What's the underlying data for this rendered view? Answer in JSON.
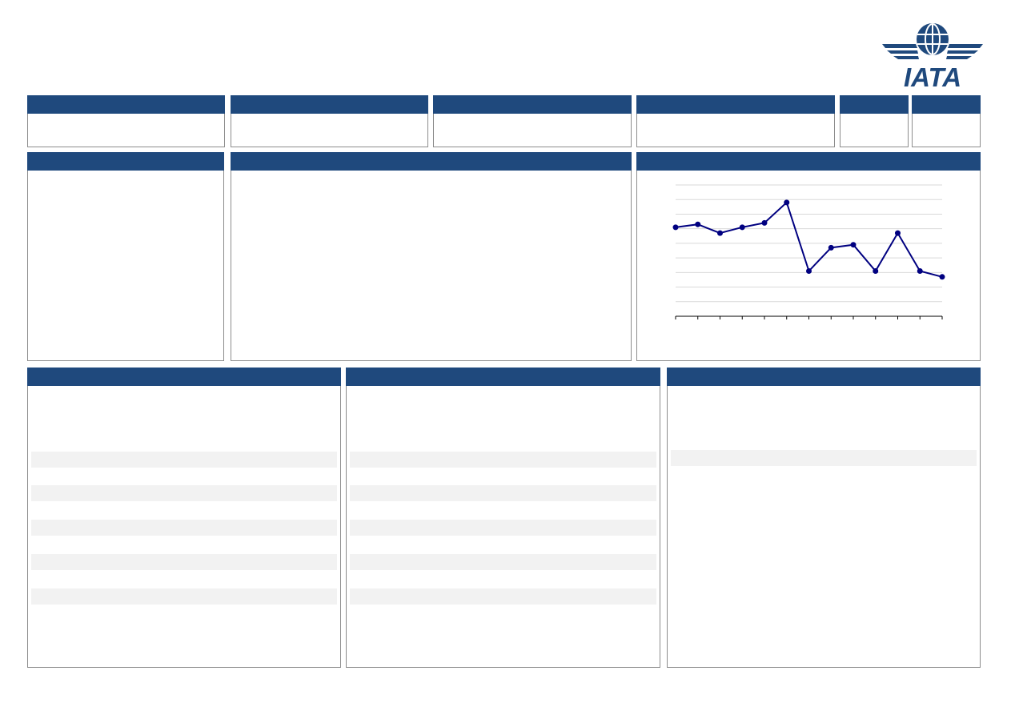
{
  "brand": {
    "logo_text": "IATA",
    "color": "#1f497d"
  },
  "colors": {
    "header_bg": "#1f497d",
    "border": "#8c8c8c",
    "stripe": "#f2f2f2",
    "line": "#000080",
    "grid": "#d9d9d9"
  },
  "chart_data": {
    "type": "line",
    "series": [
      {
        "values": [
          6.1,
          6.3,
          5.7,
          6.1,
          6.4,
          7.8,
          3.1,
          4.7,
          4.9,
          3.1,
          5.7,
          3.1,
          2.7
        ]
      }
    ],
    "x": [
      1,
      2,
      3,
      4,
      5,
      6,
      7,
      8,
      9,
      10,
      11,
      12,
      13
    ],
    "ylim": [
      0,
      9
    ],
    "grid": true
  }
}
